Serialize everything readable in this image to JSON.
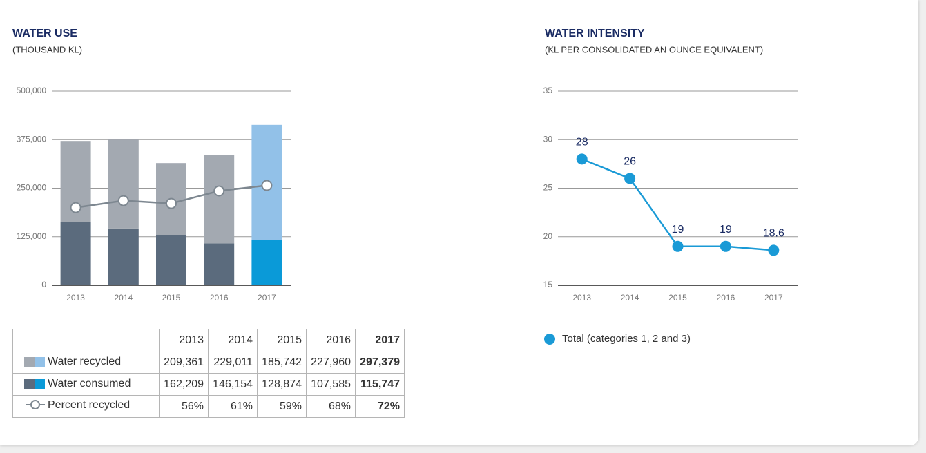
{
  "chart_data": [
    {
      "type": "bar",
      "title": "WATER USE",
      "subtitle": "(THOUSAND KL)",
      "stacked": true,
      "categories": [
        "2013",
        "2014",
        "2015",
        "2016",
        "2017"
      ],
      "category_colors": [
        "#666666",
        "#666666",
        "#666666",
        "#666666",
        "#1a9ad6"
      ],
      "series": [
        {
          "name": "Water recycled",
          "colors": [
            "#a3a9b1",
            "#a3a9b1",
            "#a3a9b1",
            "#a3a9b1",
            "#92c1e8"
          ],
          "values": [
            209361,
            229011,
            185742,
            227960,
            297379
          ],
          "value_labels": [
            "209,361",
            "229,011",
            "185,742",
            "227,960",
            "297,379"
          ]
        },
        {
          "name": "Water consumed",
          "colors": [
            "#5b6b7d",
            "#5b6b7d",
            "#5b6b7d",
            "#5b6b7d",
            "#0a9ad8"
          ],
          "values": [
            162209,
            146154,
            128874,
            107585,
            115747
          ],
          "value_labels": [
            "162,209",
            "146,154",
            "128,874",
            "107,585",
            "115,747"
          ]
        },
        {
          "name": "Percent recycled",
          "type": "line",
          "axis": "y2",
          "color": "#7d8790",
          "values": [
            56,
            61,
            59,
            68,
            72
          ],
          "value_labels": [
            "56%",
            "61%",
            "59%",
            "68%",
            "72%"
          ]
        }
      ],
      "ylim": [
        0,
        500000
      ],
      "yticks": [
        0,
        {
          "value": 125000,
          "label": "125,000"
        },
        {
          "value": 250000,
          "label": "250,000"
        },
        {
          "value": 375000,
          "label": "375,000"
        },
        {
          "value": 500000,
          "label": "500,000"
        }
      ],
      "y2lim": [
        0,
        140
      ],
      "grid": true
    },
    {
      "type": "line",
      "title": "WATER INTENSITY",
      "subtitle": "(KL PER CONSOLIDATED AN OUNCE EQUIVALENT)",
      "categories": [
        "2013",
        "2014",
        "2015",
        "2016",
        "2017"
      ],
      "category_colors": [
        "#666666",
        "#666666",
        "#666666",
        "#666666",
        "#1a9ad6"
      ],
      "series": [
        {
          "name": "Total (categories 1, 2 and 3)",
          "color": "#1a9ad6",
          "values": [
            28,
            26,
            19,
            19,
            18.6
          ]
        }
      ],
      "ylim": [
        15,
        35
      ],
      "yticks": [
        15,
        20,
        25,
        30,
        35
      ],
      "grid": true,
      "legend": "bottom-left"
    }
  ]
}
